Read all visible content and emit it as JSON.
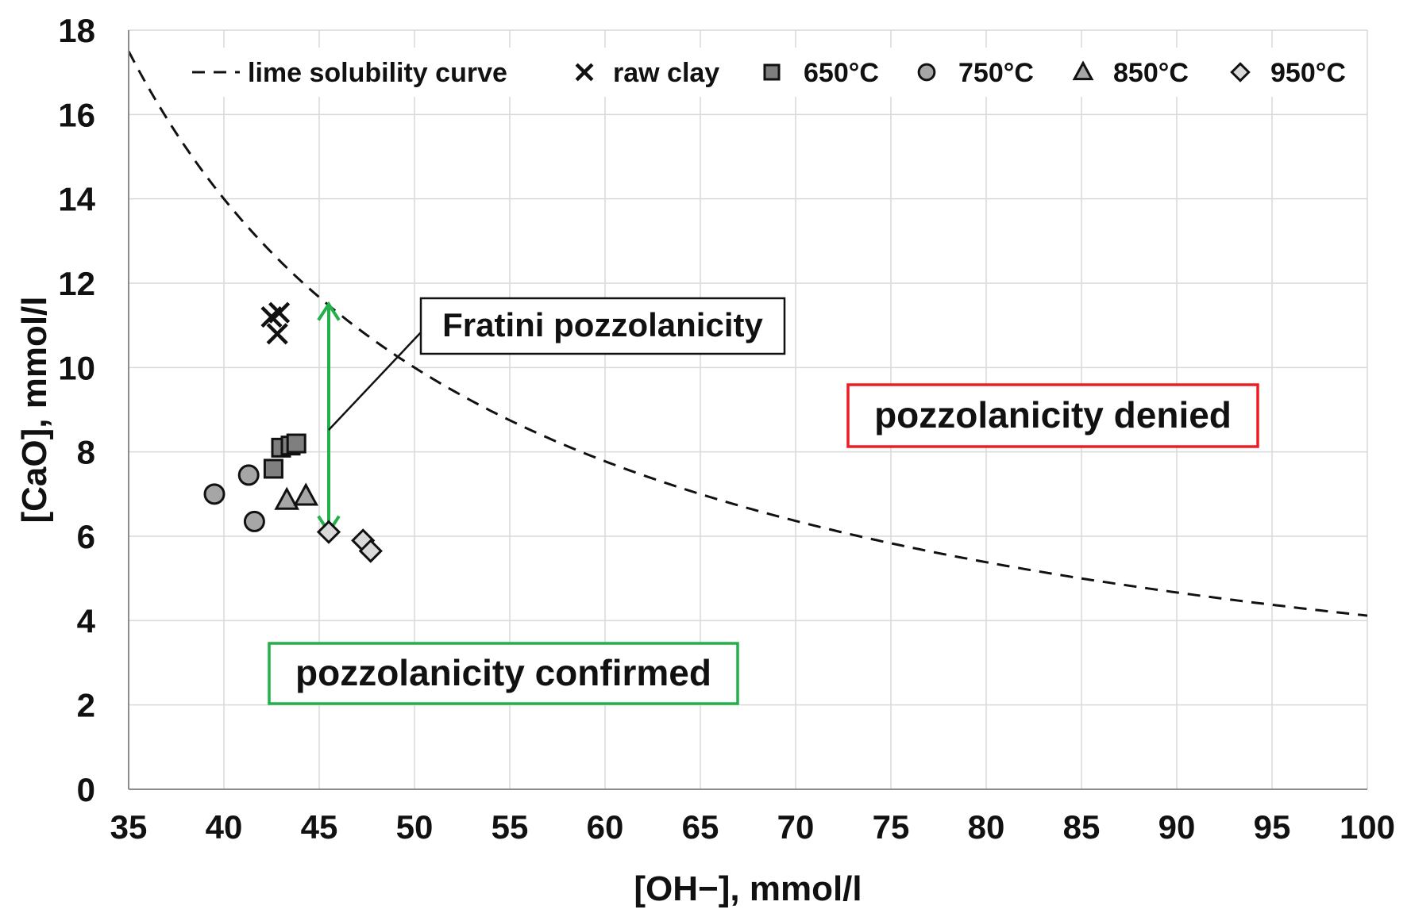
{
  "chart_data": {
    "type": "scatter",
    "title": "",
    "xlabel": "[OH−], mmol/l",
    "ylabel": "[CaO], mmol/l",
    "xlim": [
      35,
      100
    ],
    "ylim": [
      0,
      18
    ],
    "x_ticks": [
      35,
      40,
      45,
      50,
      55,
      60,
      65,
      70,
      75,
      80,
      85,
      90,
      95,
      100
    ],
    "y_ticks": [
      0,
      2,
      4,
      6,
      8,
      10,
      12,
      14,
      16,
      18
    ],
    "grid": true,
    "legend_position": "top",
    "curve": {
      "name": "lime solubility curve",
      "style": "dashed",
      "formula": "350 / (x - 15)",
      "x_range": [
        35,
        100
      ]
    },
    "series": [
      {
        "name": "raw clay",
        "marker": "x",
        "points": [
          [
            42.5,
            11.2
          ],
          [
            42.9,
            11.3
          ],
          [
            42.8,
            10.8
          ]
        ]
      },
      {
        "name": "650°C",
        "marker": "square",
        "points": [
          [
            42.6,
            7.6
          ],
          [
            43.0,
            8.1
          ],
          [
            43.5,
            8.15
          ],
          [
            43.8,
            8.2
          ]
        ]
      },
      {
        "name": "750°C",
        "marker": "circle",
        "points": [
          [
            39.5,
            7.0
          ],
          [
            41.3,
            7.45
          ],
          [
            41.6,
            6.35
          ]
        ]
      },
      {
        "name": "850°C",
        "marker": "triangle",
        "points": [
          [
            43.3,
            6.85
          ],
          [
            44.3,
            6.95
          ]
        ]
      },
      {
        "name": "950°C",
        "marker": "diamond",
        "points": [
          [
            45.5,
            6.1
          ],
          [
            47.3,
            5.9
          ],
          [
            47.7,
            5.65
          ]
        ]
      }
    ],
    "annotations": {
      "fratini": {
        "label": "Fratini pozzolanicity",
        "arrow_x": 45.5,
        "arrow_y_top": 11.5,
        "arrow_y_bottom": 6.1,
        "color": "#22b04a"
      },
      "denied": {
        "label": "pozzolanicity denied",
        "border_color": "#ee1c24"
      },
      "confirmed": {
        "label": "pozzolanicity confirmed",
        "border_color": "#22b04a"
      }
    }
  }
}
